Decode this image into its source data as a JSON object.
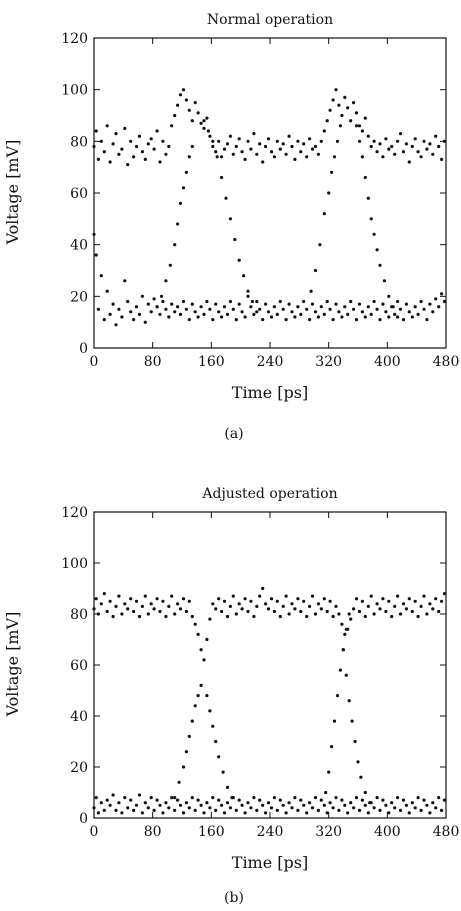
{
  "figure": {
    "captions": [
      "(a)",
      "(b)"
    ]
  },
  "chart_data": [
    {
      "type": "scatter",
      "title": "Normal operation",
      "xlabel": "Time [ps]",
      "ylabel": "Voltage [mV]",
      "xlim": [
        0,
        480
      ],
      "ylim": [
        0,
        120
      ],
      "xticks": [
        0,
        80,
        160,
        240,
        320,
        400,
        480
      ],
      "yticks": [
        0,
        20,
        40,
        60,
        80,
        100,
        120
      ],
      "grid": false,
      "series": [
        {
          "x": [
            0,
            3,
            6,
            10,
            14,
            18,
            22,
            26,
            30,
            34,
            38,
            42,
            46,
            50,
            54,
            58,
            62,
            66,
            70,
            74,
            78,
            82,
            86,
            90,
            94,
            98,
            102,
            106,
            110,
            114,
            118,
            122,
            126,
            130,
            134,
            138,
            142,
            146,
            150,
            154,
            158,
            162,
            166,
            170,
            174,
            178,
            182,
            186,
            190,
            194,
            198,
            202,
            206,
            210,
            214,
            218,
            222,
            226,
            230,
            234,
            238,
            242,
            246,
            250,
            254,
            258,
            262,
            266,
            270,
            274,
            278,
            282,
            286,
            290,
            294,
            298,
            302,
            306,
            310,
            314,
            318,
            322,
            326,
            330,
            334,
            338,
            342,
            346,
            350,
            354,
            358,
            362,
            366,
            370,
            374,
            378,
            382,
            386,
            390,
            394,
            398,
            402,
            406,
            410,
            414,
            418,
            422,
            426,
            430,
            434,
            438,
            442,
            446,
            450,
            454,
            458,
            462,
            466,
            470,
            474,
            478
          ],
          "y_high": [
            78,
            84,
            73,
            80,
            76,
            86,
            72,
            79,
            83,
            75,
            77,
            85,
            71,
            80,
            74,
            78,
            82,
            76,
            73,
            79,
            81,
            77,
            84,
            72,
            80,
            75,
            78,
            86,
            90,
            94,
            98,
            100,
            96,
            92,
            88,
            95,
            91,
            87,
            85,
            89,
            82,
            78,
            76,
            80,
            74,
            77,
            79,
            82,
            75,
            78,
            81,
            76,
            73,
            80,
            77,
            83,
            75,
            79,
            72,
            78,
            81,
            76,
            74,
            80,
            77,
            79,
            75,
            82,
            78,
            73,
            80,
            76,
            79,
            74,
            81,
            77,
            78,
            75,
            80,
            84,
            88,
            92,
            96,
            100,
            94,
            90,
            97,
            93,
            88,
            95,
            91,
            86,
            84,
            89,
            82,
            78,
            80,
            76,
            79,
            74,
            81,
            77,
            78,
            75,
            80,
            83,
            76,
            79,
            72,
            78,
            81,
            76,
            74,
            80,
            77,
            79,
            75,
            82,
            78,
            73,
            80
          ],
          "y_low": [
            44,
            36,
            15,
            28,
            11,
            22,
            13,
            17,
            9,
            15,
            12,
            26,
            18,
            14,
            11,
            16,
            13,
            20,
            10,
            17,
            14,
            19,
            16,
            13,
            18,
            15,
            12,
            17,
            14,
            16,
            13,
            18,
            15,
            11,
            17,
            14,
            12,
            16,
            13,
            18,
            15,
            11,
            17,
            14,
            12,
            16,
            13,
            18,
            15,
            11,
            17,
            14,
            12,
            20,
            16,
            13,
            18,
            15,
            11,
            17,
            14,
            12,
            16,
            13,
            18,
            15,
            11,
            17,
            14,
            12,
            16,
            13,
            18,
            15,
            11,
            17,
            14,
            12,
            16,
            13,
            18,
            15,
            11,
            17,
            14,
            12,
            16,
            13,
            18,
            15,
            11,
            17,
            14,
            12,
            16,
            13,
            18,
            15,
            11,
            17,
            14,
            12,
            16,
            13,
            18,
            15,
            11,
            17,
            14,
            12,
            16,
            13,
            18,
            15,
            11,
            17,
            14,
            19,
            16,
            21,
            18
          ],
          "transitions": [
            {
              "x": [
                86,
                92,
                98,
                104,
                110,
                114,
                118,
                122,
                126,
                130,
                134
              ],
              "y": [
                16,
                20,
                26,
                32,
                40,
                48,
                56,
                62,
                68,
                74,
                78
              ]
            },
            {
              "x": [
                150,
                156,
                162,
                168,
                174,
                180,
                186,
                192,
                198,
                204,
                210,
                216,
                222
              ],
              "y": [
                88,
                84,
                80,
                74,
                66,
                58,
                50,
                42,
                34,
                28,
                22,
                18,
                14
              ]
            },
            {
              "x": [
                296,
                302,
                308,
                314,
                320,
                324,
                328,
                332,
                336
              ],
              "y": [
                22,
                30,
                40,
                52,
                60,
                68,
                74,
                80,
                86
              ]
            },
            {
              "x": [
                358,
                362,
                366,
                370,
                374,
                378,
                382,
                386,
                390,
                396,
                402,
                408,
                414
              ],
              "y": [
                86,
                80,
                74,
                66,
                58,
                50,
                44,
                38,
                32,
                26,
                20,
                16,
                12
              ]
            }
          ]
        }
      ]
    },
    {
      "type": "scatter",
      "title": "Adjusted operation",
      "xlabel": "Time [ps]",
      "ylabel": "Voltage [mV]",
      "xlim": [
        0,
        480
      ],
      "ylim": [
        0,
        120
      ],
      "xticks": [
        0,
        80,
        160,
        240,
        320,
        400,
        480
      ],
      "yticks": [
        0,
        20,
        40,
        60,
        80,
        100,
        120
      ],
      "grid": false,
      "series": [
        {
          "x": [
            0,
            3,
            6,
            10,
            14,
            18,
            22,
            26,
            30,
            34,
            38,
            42,
            46,
            50,
            54,
            58,
            62,
            66,
            70,
            74,
            78,
            82,
            86,
            90,
            94,
            98,
            102,
            106,
            110,
            114,
            118,
            122,
            126,
            130,
            134,
            138,
            142,
            146,
            150,
            154,
            158,
            162,
            166,
            170,
            174,
            178,
            182,
            186,
            190,
            194,
            198,
            202,
            206,
            210,
            214,
            218,
            222,
            226,
            230,
            234,
            238,
            242,
            246,
            250,
            254,
            258,
            262,
            266,
            270,
            274,
            278,
            282,
            286,
            290,
            294,
            298,
            302,
            306,
            310,
            314,
            318,
            322,
            326,
            330,
            334,
            338,
            342,
            346,
            350,
            354,
            358,
            362,
            366,
            370,
            374,
            378,
            382,
            386,
            390,
            394,
            398,
            402,
            406,
            410,
            414,
            418,
            422,
            426,
            430,
            434,
            438,
            442,
            446,
            450,
            454,
            458,
            462,
            466,
            470,
            474,
            478
          ],
          "y_high": [
            82,
            86,
            80,
            84,
            88,
            81,
            85,
            79,
            83,
            87,
            80,
            84,
            82,
            86,
            81,
            85,
            79,
            83,
            87,
            80,
            84,
            82,
            86,
            81,
            85,
            79,
            83,
            87,
            80,
            84,
            82,
            86,
            81,
            85,
            79,
            76,
            72,
            66,
            62,
            70,
            78,
            84,
            82,
            86,
            81,
            85,
            79,
            83,
            87,
            80,
            84,
            82,
            86,
            81,
            85,
            79,
            83,
            87,
            90,
            84,
            82,
            86,
            81,
            85,
            79,
            83,
            87,
            80,
            84,
            82,
            86,
            81,
            85,
            79,
            83,
            87,
            80,
            84,
            82,
            86,
            81,
            85,
            79,
            83,
            80,
            76,
            72,
            74,
            78,
            82,
            86,
            81,
            85,
            79,
            83,
            87,
            80,
            84,
            82,
            86,
            81,
            85,
            79,
            83,
            87,
            80,
            84,
            82,
            86,
            81,
            85,
            79,
            83,
            87,
            80,
            84,
            82,
            86,
            81,
            85,
            88
          ],
          "y_low": [
            4,
            8,
            2,
            6,
            3,
            7,
            5,
            9,
            3,
            6,
            2,
            8,
            4,
            7,
            3,
            5,
            9,
            2,
            6,
            4,
            8,
            3,
            7,
            5,
            2,
            6,
            4,
            8,
            3,
            7,
            5,
            2,
            6,
            4,
            8,
            3,
            7,
            5,
            2,
            6,
            4,
            8,
            3,
            7,
            5,
            2,
            6,
            4,
            8,
            3,
            7,
            5,
            2,
            6,
            4,
            8,
            3,
            7,
            5,
            2,
            6,
            4,
            8,
            3,
            7,
            5,
            2,
            6,
            4,
            8,
            3,
            7,
            5,
            2,
            6,
            4,
            8,
            3,
            7,
            5,
            2,
            6,
            4,
            8,
            3,
            7,
            5,
            2,
            6,
            4,
            8,
            3,
            7,
            5,
            2,
            6,
            4,
            8,
            3,
            7,
            5,
            2,
            6,
            4,
            8,
            3,
            7,
            5,
            2,
            6,
            4,
            8,
            3,
            7,
            5,
            2,
            6,
            4,
            8,
            3,
            7
          ],
          "transitions": [
            {
              "x": [
                110,
                116,
                122,
                126,
                130,
                134,
                138,
                142,
                146
              ],
              "y": [
                8,
                14,
                20,
                26,
                32,
                38,
                44,
                48,
                52
              ]
            },
            {
              "x": [
                154,
                158,
                162,
                166,
                170,
                176,
                182,
                188
              ],
              "y": [
                48,
                42,
                36,
                30,
                24,
                18,
                12,
                8
              ]
            },
            {
              "x": [
                316,
                320,
                324,
                328,
                332,
                336,
                340,
                344,
                348
              ],
              "y": [
                10,
                18,
                28,
                38,
                48,
                58,
                66,
                74,
                80
              ]
            },
            {
              "x": [
                340,
                344,
                348,
                352,
                356,
                360,
                364,
                370,
                376
              ],
              "y": [
                66,
                56,
                46,
                38,
                30,
                22,
                16,
                10,
                6
              ]
            }
          ]
        }
      ]
    }
  ]
}
